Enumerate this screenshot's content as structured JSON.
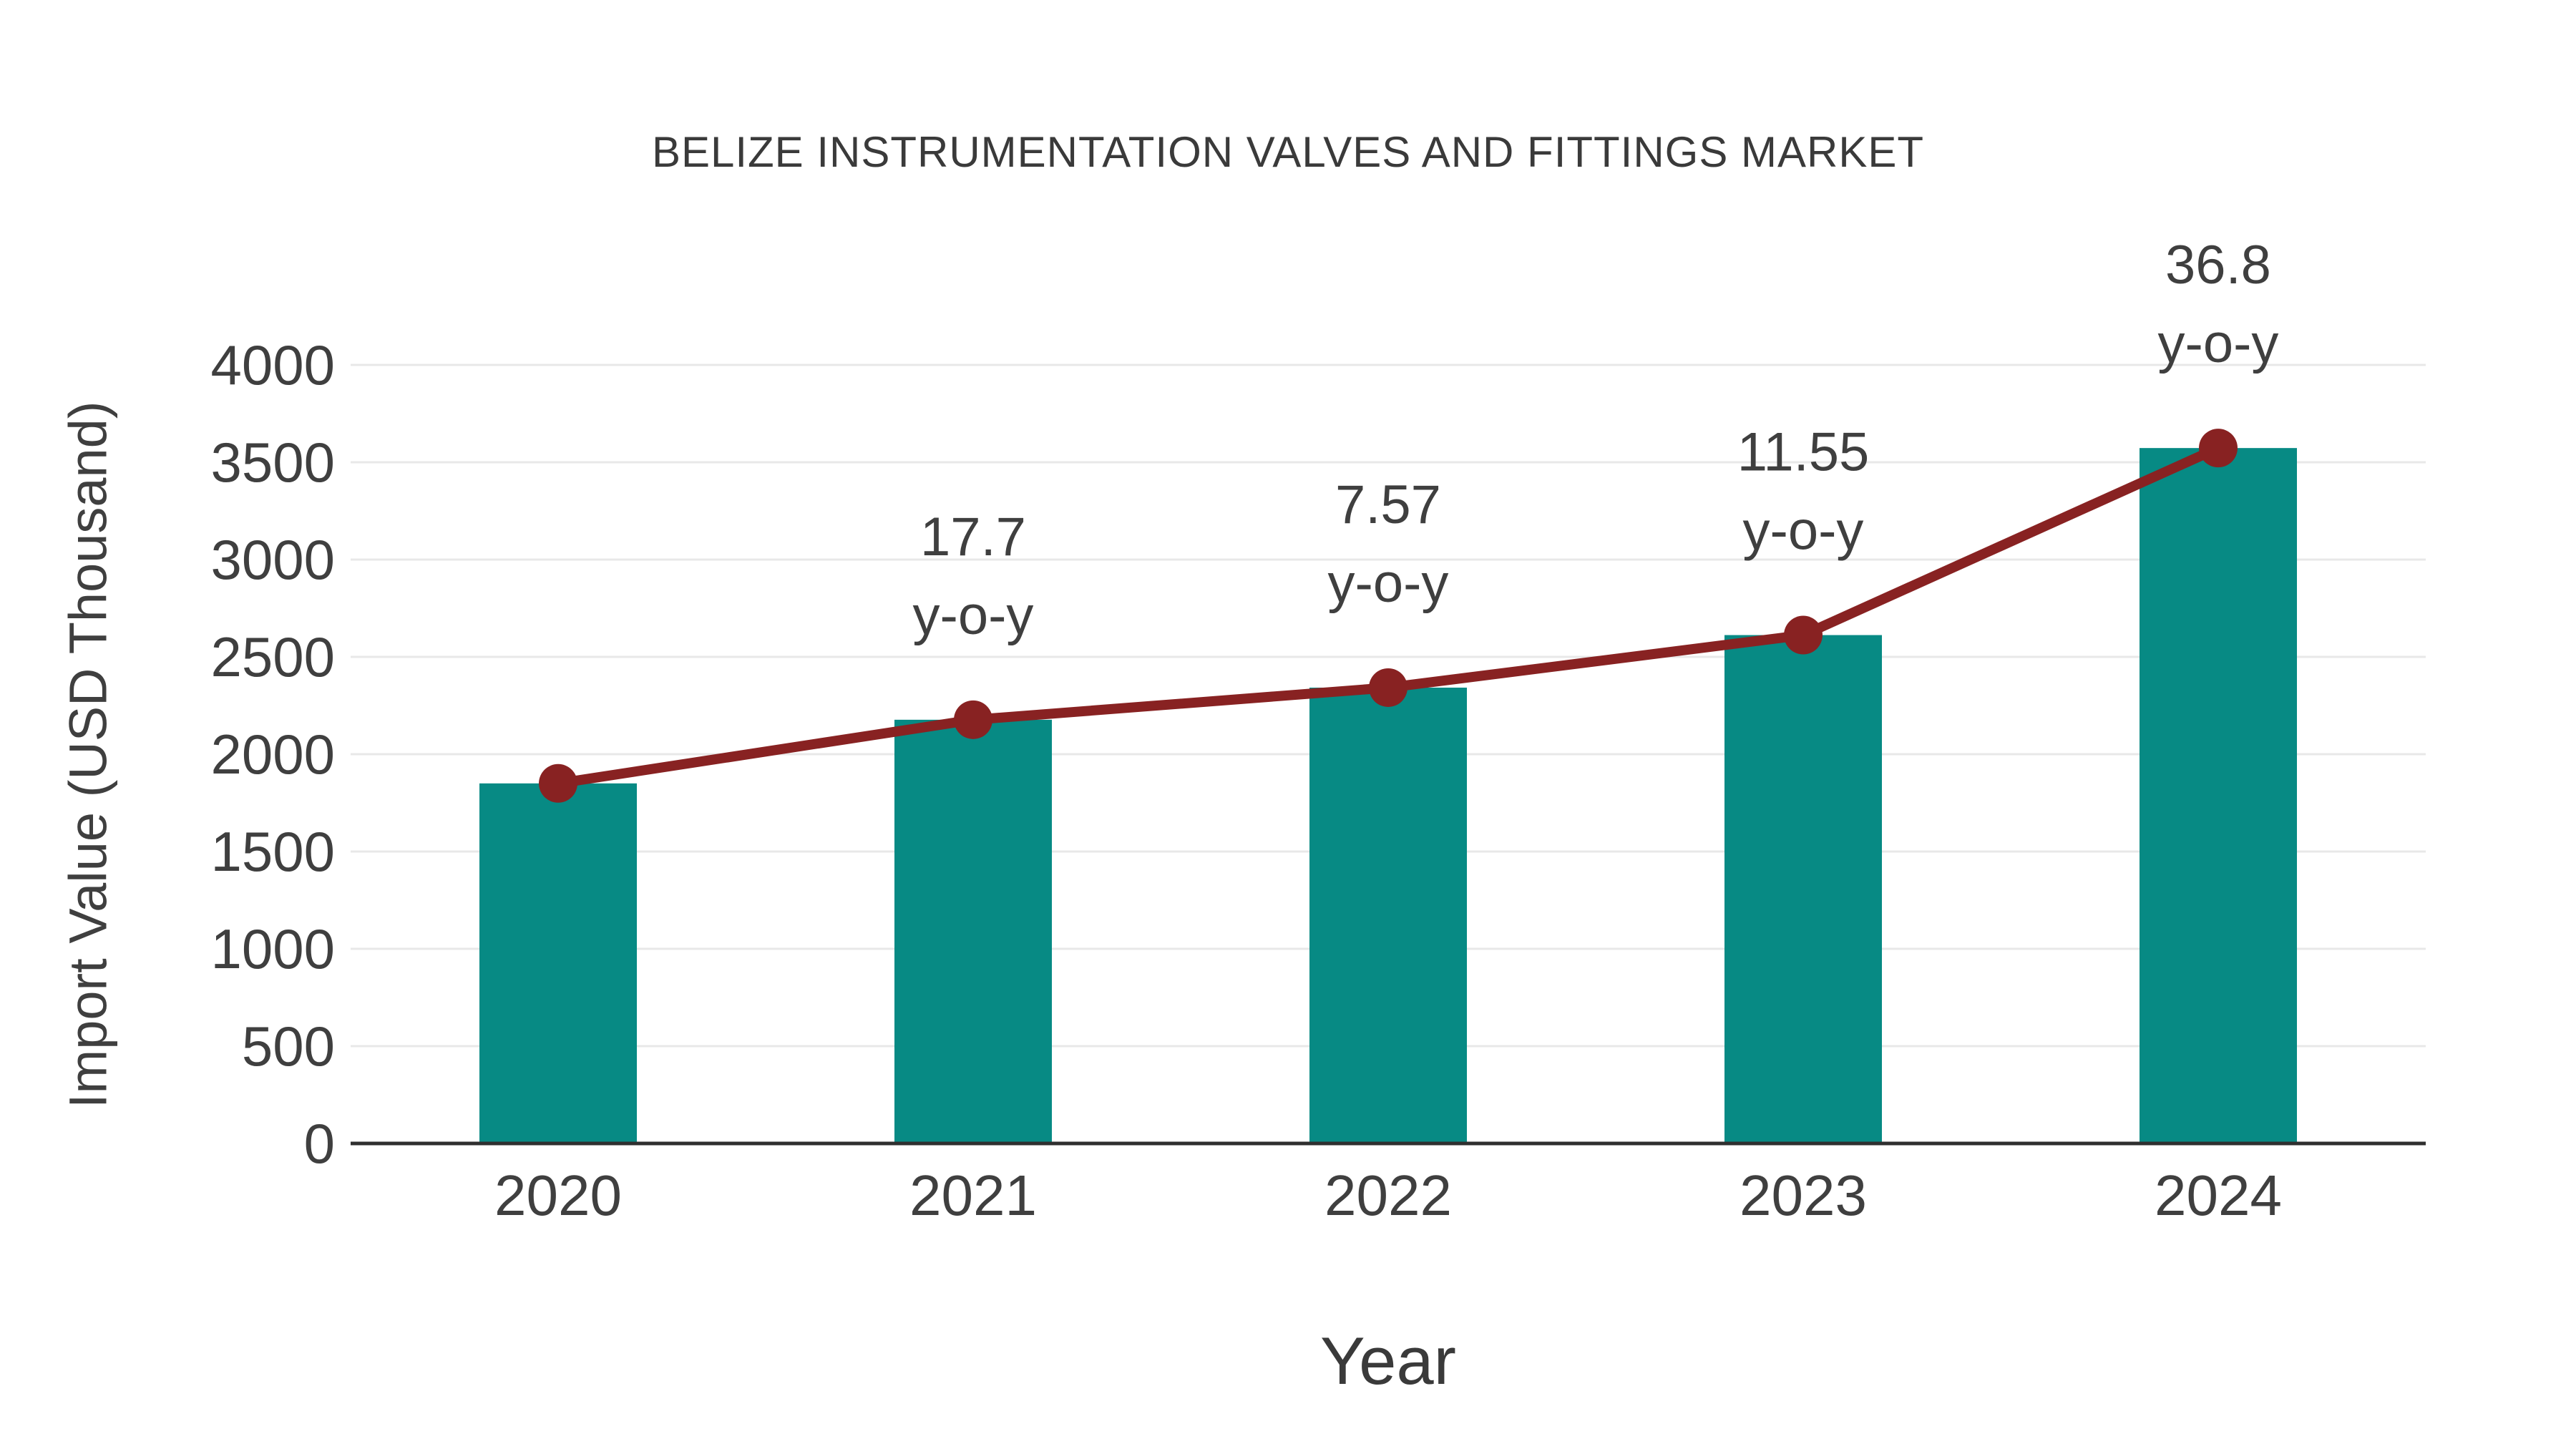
{
  "chart_data": {
    "type": "bar",
    "title": "BELIZE INSTRUMENTATION VALVES AND FITTINGS MARKET",
    "xlabel": "Year",
    "ylabel": "Import Value (USD Thousand)",
    "categories": [
      "2020",
      "2021",
      "2022",
      "2023",
      "2024"
    ],
    "series": [
      {
        "name": "Import Value",
        "type": "bar",
        "values": [
          1850,
          2177,
          2342,
          2612,
          3573
        ]
      },
      {
        "name": "Trend",
        "type": "line",
        "values": [
          1850,
          2177,
          2342,
          2612,
          3573
        ]
      }
    ],
    "annotations": [
      {
        "category": "2021",
        "line1": "17.7",
        "line2": "y-o-y"
      },
      {
        "category": "2022",
        "line1": "7.57",
        "line2": "y-o-y"
      },
      {
        "category": "2023",
        "line1": "11.55",
        "line2": "y-o-y"
      },
      {
        "category": "2024",
        "line1": "36.8",
        "line2": "y-o-y"
      }
    ],
    "ylim": [
      0,
      4000
    ],
    "ytick_step": 500,
    "grid": true,
    "legend": "none",
    "colors": {
      "bar": "#078a84",
      "line": "#882222",
      "marker": "#882222",
      "grid": "#e8e8e8",
      "axis": "#2f2f2f",
      "text": "#3f3f3f"
    }
  }
}
